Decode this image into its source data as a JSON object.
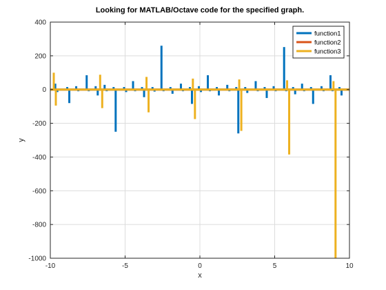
{
  "chart_data": {
    "type": "line",
    "title": "Looking for MATLAB/Octave code for the specified graph.",
    "xlabel": "x",
    "ylabel": "y",
    "xlim": [
      -10,
      10
    ],
    "ylim": [
      -1000,
      400
    ],
    "xticks": [
      -10,
      -5,
      0,
      5,
      10
    ],
    "xtick_labels": [
      "-10",
      "-5",
      "0",
      "5",
      "10"
    ],
    "yticks": [
      -1000,
      -800,
      -600,
      -400,
      -200,
      0,
      200,
      400
    ],
    "ytick_labels": [
      "-1000",
      "-800",
      "-600",
      "-400",
      "-200",
      "0",
      "200",
      "400"
    ],
    "grid": true,
    "legend_position": "top-right",
    "series": [
      {
        "name": "function1",
        "color": "#0072bd",
        "spikes": [
          [
            -9.6,
            35,
            -15
          ],
          [
            -8.8,
            15,
            -80
          ],
          [
            -8.2,
            20,
            -10
          ],
          [
            -7.5,
            85,
            -10
          ],
          [
            -6.9,
            20,
            -35
          ],
          [
            -6.3,
            28,
            -10
          ],
          [
            -5.7,
            15,
            -250
          ],
          [
            -5.0,
            15,
            -15
          ],
          [
            -4.4,
            50,
            -10
          ],
          [
            -3.8,
            15,
            -45
          ],
          [
            -3.1,
            15,
            -12
          ],
          [
            -2.5,
            260,
            -10
          ],
          [
            -1.9,
            15,
            -25
          ],
          [
            -1.2,
            35,
            -10
          ],
          [
            -0.6,
            15,
            -85
          ],
          [
            0.0,
            20,
            -15
          ],
          [
            0.6,
            85,
            -10
          ],
          [
            1.2,
            15,
            -35
          ],
          [
            1.9,
            28,
            -10
          ],
          [
            2.5,
            15,
            -260
          ],
          [
            3.1,
            15,
            -20
          ],
          [
            3.8,
            50,
            -10
          ],
          [
            4.4,
            15,
            -50
          ],
          [
            5.0,
            20,
            -10
          ],
          [
            5.7,
            252,
            -10
          ],
          [
            6.3,
            15,
            -28
          ],
          [
            6.9,
            35,
            -10
          ],
          [
            7.5,
            15,
            -85
          ],
          [
            8.2,
            20,
            -10
          ],
          [
            8.8,
            85,
            -10
          ],
          [
            9.4,
            15,
            -35
          ]
        ]
      },
      {
        "name": "function2",
        "color": "#d95319",
        "spikes": []
      },
      {
        "name": "function3",
        "color": "#edb120",
        "spikes": [
          [
            -9.7,
            100,
            -95
          ],
          [
            -6.6,
            88,
            -110
          ],
          [
            -3.5,
            75,
            -135
          ],
          [
            -0.4,
            65,
            -175
          ],
          [
            2.7,
            60,
            -245
          ],
          [
            5.9,
            55,
            -385
          ],
          [
            9.0,
            50,
            -1000
          ]
        ]
      }
    ]
  }
}
